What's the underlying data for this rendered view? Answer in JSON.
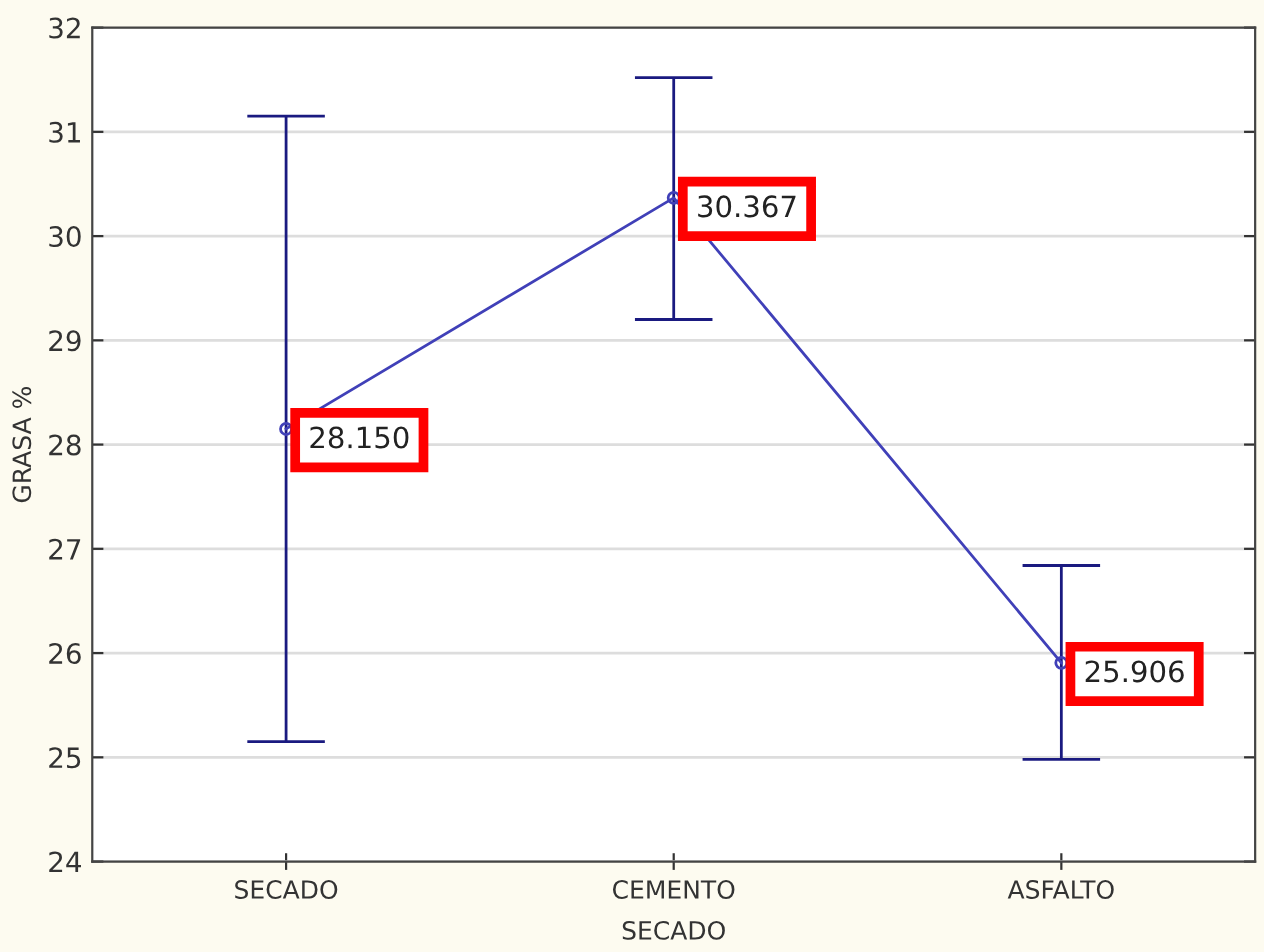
{
  "chart_data": {
    "type": "line",
    "xlabel": "SECADO",
    "ylabel": "GRASA %",
    "categories": [
      "SECADO",
      "CEMENTO",
      "ASFALTO"
    ],
    "series": [
      {
        "color": "#4040b8",
        "values": [
          28.15,
          30.367,
          25.906
        ],
        "errors": [
          [
            25.15,
            31.15
          ],
          [
            29.2,
            31.52
          ],
          [
            24.98,
            26.84
          ]
        ]
      }
    ],
    "value_labels": [
      "28.150",
      "30.367",
      "25.906"
    ],
    "marker": "circle",
    "line_style": "solid",
    "ylim": [
      24,
      32
    ],
    "yticks": [
      24,
      25,
      26,
      27,
      28,
      29,
      30,
      31,
      32
    ],
    "grid": "y"
  }
}
